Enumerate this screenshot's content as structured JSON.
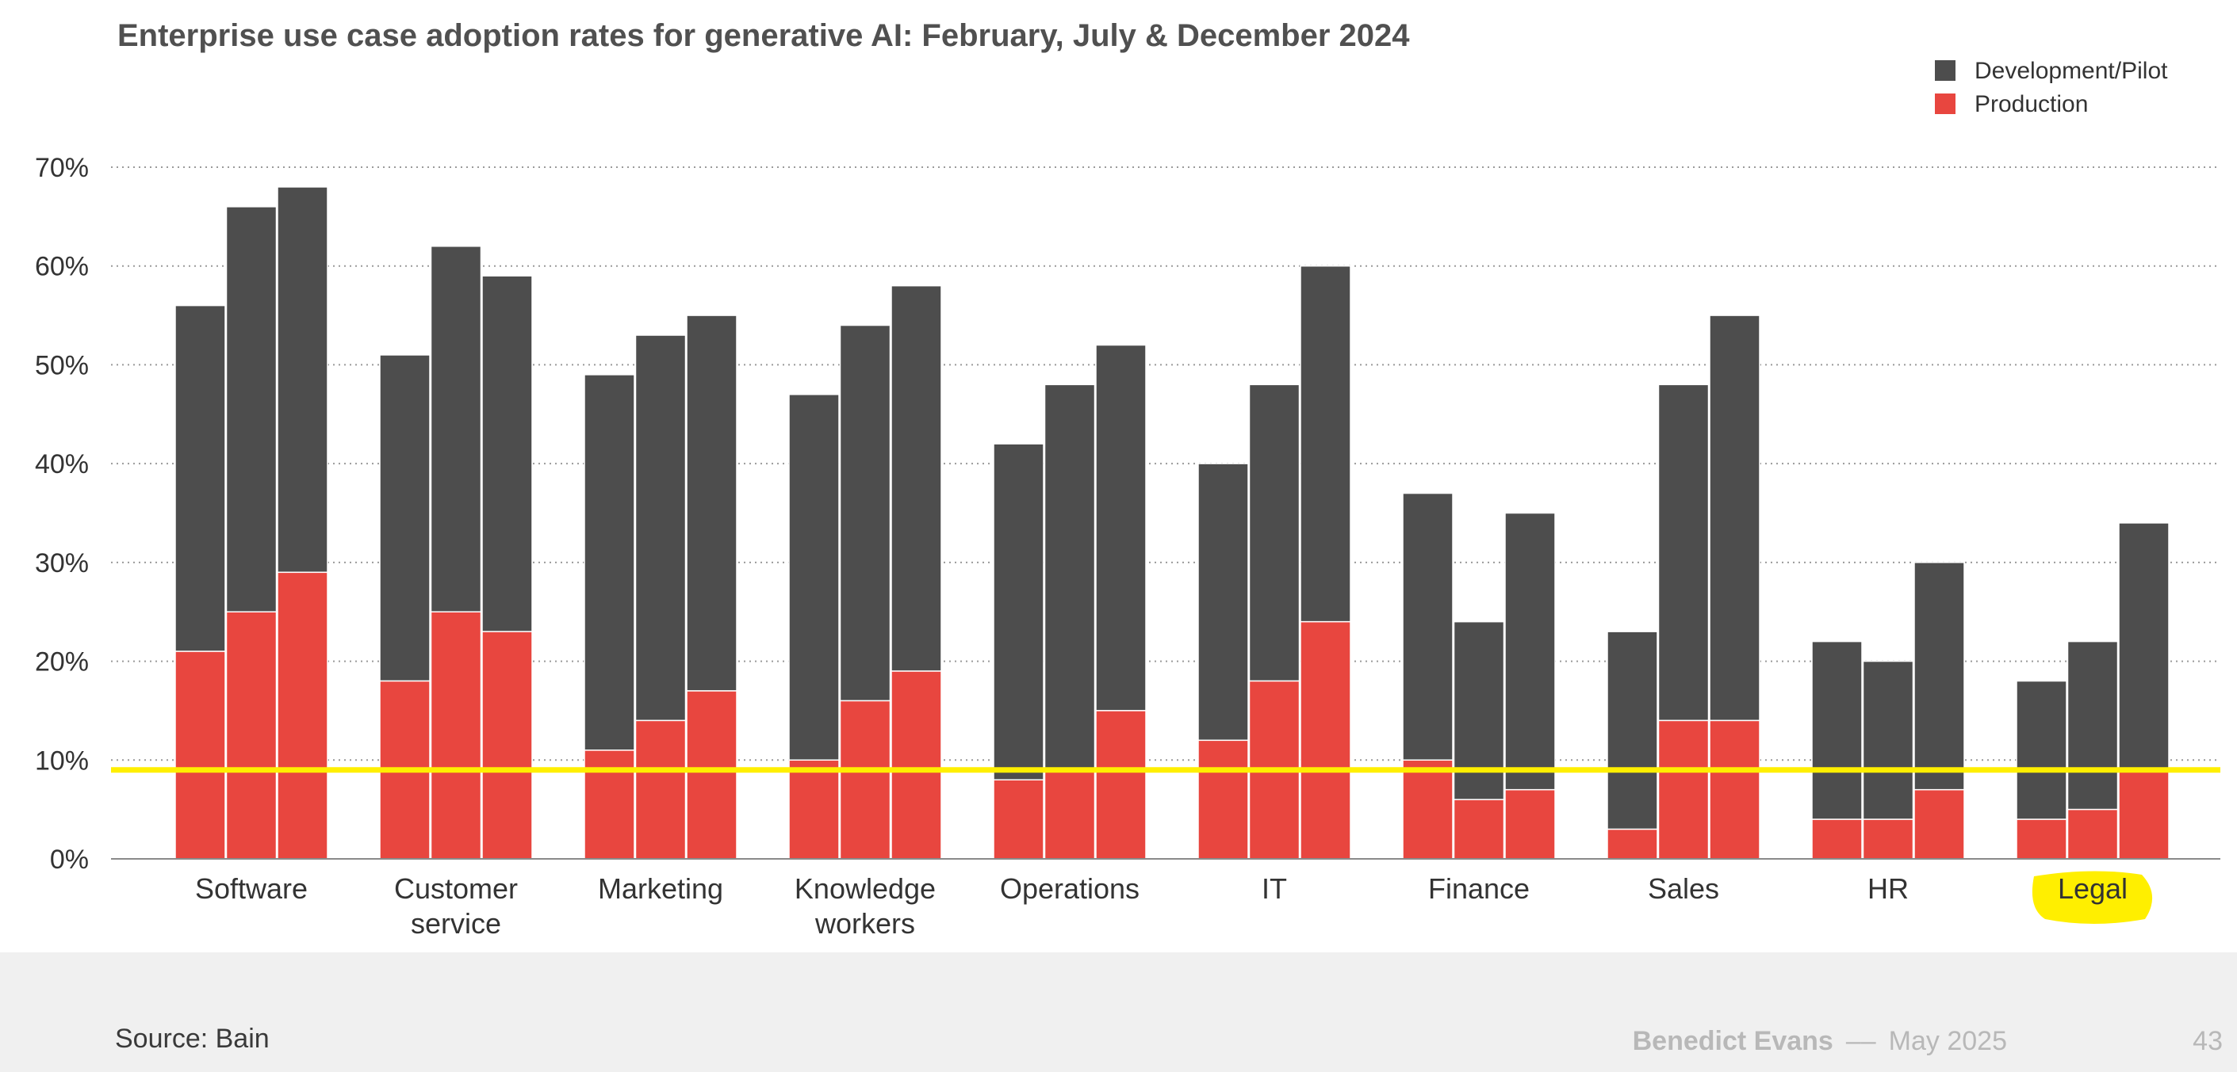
{
  "chart_data": {
    "type": "bar",
    "stacked": true,
    "title": "Enterprise use case adoption rates for generative AI: February, July & December 2024",
    "categories": [
      [
        "Software"
      ],
      [
        "Customer",
        "service"
      ],
      [
        "Marketing"
      ],
      [
        "Knowledge",
        "workers"
      ],
      [
        "Operations"
      ],
      [
        "IT"
      ],
      [
        "Finance"
      ],
      [
        "Sales"
      ],
      [
        "HR"
      ],
      [
        "Legal"
      ]
    ],
    "periods_per_category": 3,
    "series": [
      {
        "name": "Production",
        "color": "#e8463f",
        "values": [
          [
            21,
            25,
            29
          ],
          [
            18,
            25,
            23
          ],
          [
            11,
            14,
            17
          ],
          [
            10,
            16,
            19
          ],
          [
            8,
            9,
            15
          ],
          [
            12,
            18,
            24
          ],
          [
            10,
            6,
            7
          ],
          [
            3,
            14,
            14
          ],
          [
            4,
            4,
            7
          ],
          [
            4,
            5,
            9
          ]
        ]
      },
      {
        "name": "Development/Pilot",
        "color": "#4d4d4d",
        "totals": [
          [
            56,
            66,
            68
          ],
          [
            51,
            62,
            59
          ],
          [
            49,
            53,
            55
          ],
          [
            47,
            54,
            58
          ],
          [
            42,
            48,
            52
          ],
          [
            40,
            48,
            60
          ],
          [
            37,
            24,
            35
          ],
          [
            23,
            48,
            55
          ],
          [
            22,
            20,
            30
          ],
          [
            18,
            22,
            34
          ]
        ]
      }
    ],
    "ylim": [
      0,
      70
    ],
    "yticks": [
      0,
      10,
      20,
      30,
      40,
      50,
      60,
      70
    ],
    "ytick_format": "%",
    "grid": "horizontal-dotted",
    "legend": "top-right",
    "annotations": {
      "reference_line_value": 9,
      "reference_line_color": "#ffef00",
      "highlighted_category": "Legal",
      "highlight_color": "#ffef00"
    }
  },
  "footer": {
    "source": "Source: Bain",
    "author": "Benedict Evans",
    "separator": "––",
    "date": "May 2025",
    "page_number": "43"
  }
}
